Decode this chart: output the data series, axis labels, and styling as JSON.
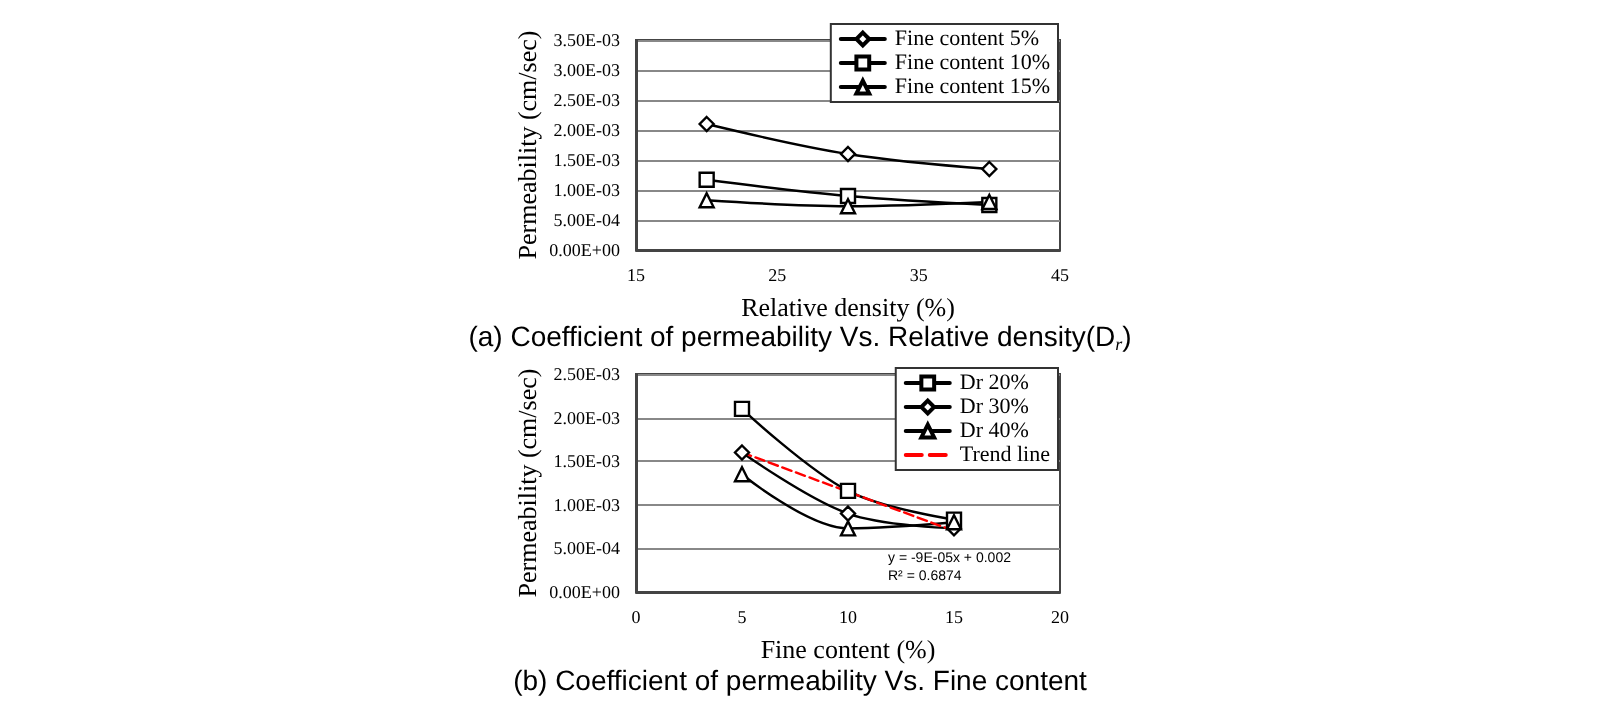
{
  "chart_data": [
    {
      "type": "line",
      "title": "(a) Coefficient of permeability Vs. Relative density(D$_{r}$)",
      "xlabel": "Relative density (%)",
      "ylabel": "Permeability (cm/sec)",
      "x": [
        20,
        30,
        40
      ],
      "xlim": [
        15,
        45
      ],
      "xticks": [
        15,
        25,
        35,
        45
      ],
      "ylim": [
        0,
        0.0035
      ],
      "yticks": [
        {
          "value": 0,
          "label": "0.00E+00"
        },
        {
          "value": 0.0005,
          "label": "5.00E-04"
        },
        {
          "value": 0.001,
          "label": "1.00E-03"
        },
        {
          "value": 0.0015,
          "label": "1.50E-03"
        },
        {
          "value": 0.002,
          "label": "2.00E-03"
        },
        {
          "value": 0.0025,
          "label": "2.50E-03"
        },
        {
          "value": 0.003,
          "label": "3.00E-03"
        },
        {
          "value": 0.0035,
          "label": "3.50E-03"
        }
      ],
      "grid": "y",
      "legend": "top right",
      "line_style": "solid",
      "series": [
        {
          "name": "Fine content 5%",
          "color": "#000000",
          "marker": "diamond",
          "values": [
            0.0021,
            0.0016,
            0.00135
          ]
        },
        {
          "name": "Fine content 10%",
          "color": "#000000",
          "marker": "square",
          "values": [
            0.00117,
            0.0009,
            0.00075
          ]
        },
        {
          "name": "Fine content 15%",
          "color": "#000000",
          "marker": "triangle",
          "values": [
            0.00083,
            0.00073,
            0.0008
          ]
        }
      ]
    },
    {
      "type": "line",
      "title": "(b) Coefficient of permeability Vs. Fine content",
      "xlabel": "Fine content (%)",
      "ylabel": "Permeability (cm/sec)",
      "x": [
        5,
        10,
        15
      ],
      "xlim": [
        0,
        20
      ],
      "xticks": [
        0,
        5,
        10,
        15,
        20
      ],
      "ylim": [
        0,
        0.0025
      ],
      "yticks": [
        {
          "value": 0,
          "label": "0.00E+00"
        },
        {
          "value": 0.0005,
          "label": "5.00E-04"
        },
        {
          "value": 0.001,
          "label": "1.00E-03"
        },
        {
          "value": 0.0015,
          "label": "1.50E-03"
        },
        {
          "value": 0.002,
          "label": "2.00E-03"
        },
        {
          "value": 0.0025,
          "label": "2.50E-03"
        }
      ],
      "grid": "y",
      "legend": "top right",
      "line_style": "solid",
      "annotations": [
        "y = -9E-05x + 0.002",
        "R² = 0.6874"
      ],
      "series": [
        {
          "name": "Dr 20%",
          "color": "#000000",
          "marker": "square",
          "values": [
            0.0021,
            0.00116,
            0.00083
          ]
        },
        {
          "name": "Dr 30%",
          "color": "#000000",
          "marker": "diamond",
          "values": [
            0.0016,
            0.0009,
            0.00073
          ]
        },
        {
          "name": "Dr 40%",
          "color": "#000000",
          "marker": "triangle",
          "values": [
            0.00135,
            0.00073,
            0.0008
          ]
        },
        {
          "name": "Trend line",
          "type": "line",
          "color": "#ff0000",
          "marker": "none",
          "line_style": "dashed",
          "x": [
            5,
            15
          ],
          "values": [
            0.0016,
            0.0007
          ]
        }
      ]
    }
  ]
}
